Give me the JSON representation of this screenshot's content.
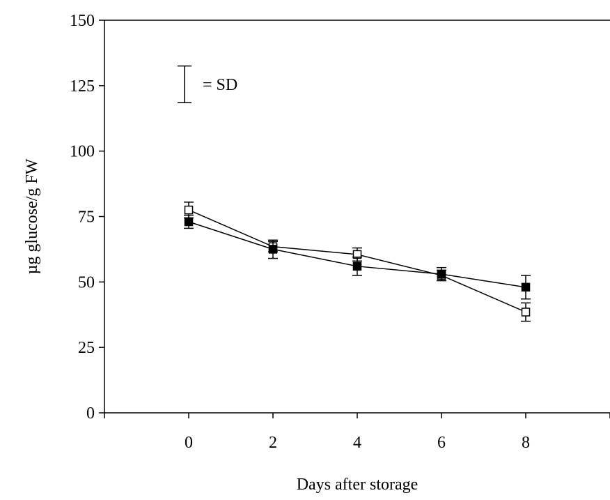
{
  "chart_data": {
    "type": "line",
    "title": "",
    "xlabel": "Days after storage",
    "ylabel": "µg glucose/g FW",
    "x": [
      0,
      2,
      4,
      6,
      8
    ],
    "xticks": [
      "0",
      "2",
      "4",
      "6",
      "8"
    ],
    "yticks": [
      "0",
      "25",
      "50",
      "75",
      "100",
      "125",
      "150"
    ],
    "xlim": [
      -2,
      10
    ],
    "ylim": [
      0,
      150
    ],
    "grid": false,
    "legend": {
      "sd_label": "= SD",
      "sd_bar_range": [
        118.5,
        132.5
      ],
      "sd_bar_x": -0.1
    },
    "series": [
      {
        "marker": "open-square",
        "values": [
          77.5,
          63.5,
          60.5,
          52.5,
          38.5
        ],
        "sd": [
          3.0,
          2.0,
          2.5,
          2.0,
          3.5
        ]
      },
      {
        "marker": "filled-square",
        "values": [
          73.0,
          62.5,
          56.0,
          53.0,
          48.0
        ],
        "sd": [
          2.5,
          3.5,
          3.5,
          2.5,
          4.5
        ]
      }
    ],
    "colors": {
      "line": "#000000",
      "open_fill": "#ffffff",
      "filled_fill": "#000000"
    }
  }
}
